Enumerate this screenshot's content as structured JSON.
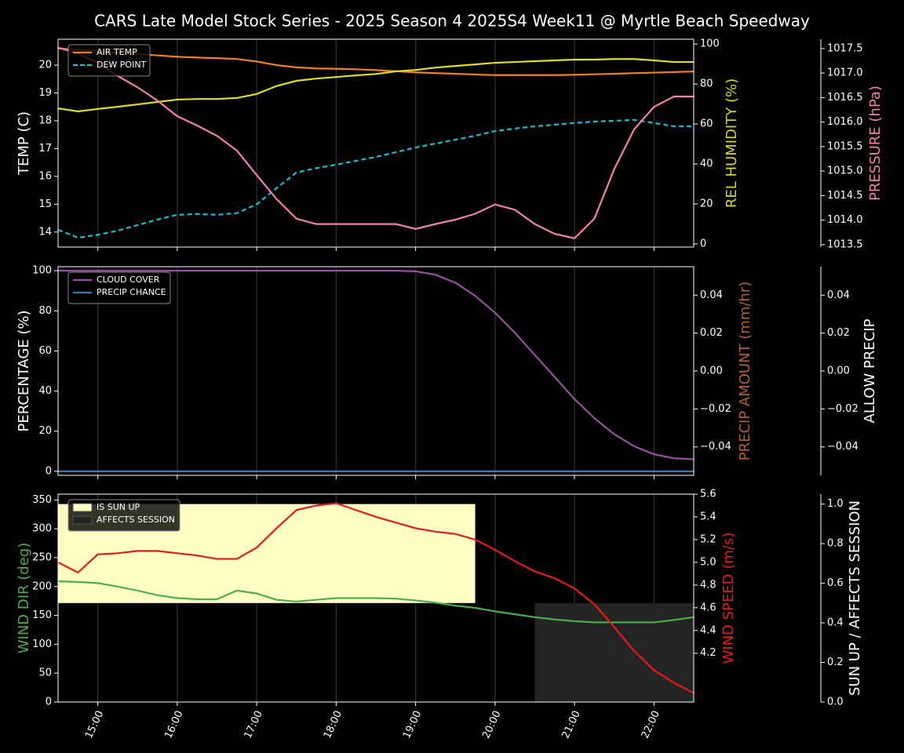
{
  "title": "CARS Late Model Stock Series - 2025 Season 4 2025S4 Week11 @ Myrtle Beach Speedway",
  "chart_data": [
    {
      "type": "line",
      "x": [
        14.5,
        14.75,
        15,
        15.25,
        15.5,
        15.75,
        16,
        16.25,
        16.5,
        16.75,
        17,
        17.25,
        17.5,
        17.75,
        18,
        18.25,
        18.5,
        18.75,
        19,
        19.25,
        19.5,
        19.75,
        20,
        20.25,
        20.5,
        20.75,
        21,
        21.25,
        21.5,
        21.75,
        22,
        22.25,
        22.5
      ],
      "xlim": [
        14.5,
        22.5
      ],
      "xticks": [
        15,
        16,
        17,
        18,
        19,
        20,
        21,
        22
      ],
      "ylabel": "TEMP (C)",
      "ylabel_color": "#ffffff",
      "ylim": [
        13.46,
        20.93
      ],
      "yticks": [
        14,
        15,
        16,
        17,
        18,
        19,
        20
      ],
      "y2label": "REL HUMIDITY (%)",
      "y2label_color": "#d8d820",
      "y2lim": [
        -1.6,
        102.4
      ],
      "y2ticks": [
        0,
        20,
        40,
        60,
        80,
        100
      ],
      "y3label": "PRESSURE (hPa)",
      "y3label_color": "#f07fb5",
      "y3lim": [
        1013.45,
        1017.69
      ],
      "y3ticks": [
        1013.5,
        {
          "value": 1014,
          "label": "1014.0"
        },
        1014.5,
        {
          "value": 1015,
          "label": "1015.0"
        },
        1015.5,
        {
          "value": 1016,
          "label": "1016.0"
        },
        1016.5,
        {
          "value": 1017,
          "label": "1017.0"
        },
        1017.5
      ],
      "series": [
        {
          "name": "AIR TEMP",
          "color": "#f07f1c",
          "axis": "y",
          "values": [
            20.6,
            20.55,
            20.5,
            20.45,
            20.4,
            20.35,
            20.3,
            20.27,
            20.25,
            20.22,
            20.13,
            20.0,
            19.92,
            19.88,
            19.87,
            19.85,
            19.82,
            19.78,
            19.74,
            19.71,
            19.69,
            19.66,
            19.64,
            19.64,
            19.64,
            19.64,
            19.65,
            19.67,
            19.69,
            19.71,
            19.73,
            19.75,
            19.77
          ]
        },
        {
          "name": "DEW POINT",
          "color": "#17becf",
          "dashed": true,
          "axis": "y",
          "values": [
            14.08,
            13.8,
            13.9,
            14.05,
            14.25,
            14.45,
            14.62,
            14.65,
            14.62,
            14.68,
            15.0,
            15.58,
            16.14,
            16.3,
            16.42,
            16.56,
            16.7,
            16.87,
            17.04,
            17.18,
            17.32,
            17.46,
            17.63,
            17.72,
            17.8,
            17.86,
            17.92,
            17.97,
            18.0,
            18.03,
            17.92,
            17.8,
            17.8
          ]
        },
        {
          "color": "#dddd22",
          "axis": "y2",
          "values": [
            67.8,
            66.3,
            67.5,
            68.6,
            69.8,
            71,
            72.2,
            72.5,
            72.5,
            73,
            75,
            79,
            81.6,
            82.7,
            83.5,
            84.3,
            85,
            86.3,
            87,
            88.2,
            89,
            89.8,
            90.6,
            91,
            91.4,
            91.8,
            92.2,
            92.2,
            92.5,
            92.5,
            91.8,
            91,
            91
          ]
        },
        {
          "color": "#f07fb5",
          "axis": "y3",
          "values": [
            1017.52,
            1017.4,
            1017.21,
            1016.94,
            1016.71,
            1016.44,
            1016.12,
            1015.93,
            1015.72,
            1015.42,
            1014.92,
            1014.43,
            1014.03,
            1013.92,
            1013.92,
            1013.92,
            1013.92,
            1013.92,
            1013.82,
            1013.92,
            1014.01,
            1014.13,
            1014.32,
            1014.21,
            1013.92,
            1013.72,
            1013.63,
            1014.03,
            1015.04,
            1015.85,
            1016.31,
            1016.52,
            1016.52
          ]
        }
      ]
    },
    {
      "type": "line",
      "x": [
        14.5,
        14.75,
        15,
        15.25,
        15.5,
        15.75,
        16,
        16.25,
        16.5,
        16.75,
        17,
        17.25,
        17.5,
        17.75,
        18,
        18.25,
        18.5,
        18.75,
        19,
        19.25,
        19.5,
        19.75,
        20,
        20.25,
        20.5,
        20.75,
        21,
        21.25,
        21.5,
        21.75,
        22,
        22.25,
        22.5
      ],
      "xlim": [
        14.5,
        22.5
      ],
      "xticks": [
        15,
        16,
        17,
        18,
        19,
        20,
        21,
        22
      ],
      "ylabel": "PERCENTAGE (%)",
      "ylabel_color": "#ffffff",
      "ylim": [
        -2,
        102
      ],
      "yticks": [
        0,
        20,
        40,
        60,
        80,
        100
      ],
      "y2label": "PRECIP AMOUNT (mm/hr)",
      "y2label_color": "#b0603a",
      "y2lim": [
        -0.055,
        0.055
      ],
      "y2ticks": [
        {
          "value": -0.04,
          "label": "−0.04"
        },
        {
          "value": -0.02,
          "label": "−0.02"
        },
        {
          "value": 0,
          "label": "0.00"
        },
        0.02,
        0.04
      ],
      "y3label": "ALLOW PRECIP",
      "y3label_color": "#ffffff",
      "y3lim": [
        -0.055,
        0.055
      ],
      "y3ticks": [
        {
          "value": -0.04,
          "label": "−0.04"
        },
        {
          "value": -0.02,
          "label": "−0.02"
        },
        {
          "value": 0,
          "label": "0.00"
        },
        0.02,
        0.04
      ],
      "series": [
        {
          "name": "CLOUD COVER",
          "color": "#984ea3",
          "axis": "y",
          "values": [
            100,
            100,
            100,
            100,
            100,
            100,
            100,
            100,
            100,
            100,
            100,
            100,
            100,
            100,
            100,
            100,
            100,
            100,
            99.7,
            98,
            94,
            87.5,
            79,
            69,
            58,
            47,
            36,
            26.5,
            18.5,
            12.5,
            8.5,
            6.5,
            6
          ]
        },
        {
          "name": "PRECIP CHANCE",
          "color": "#377eb8",
          "axis": "y",
          "values": [
            0,
            0,
            0,
            0,
            0,
            0,
            0,
            0,
            0,
            0,
            0,
            0,
            0,
            0,
            0,
            0,
            0,
            0,
            0,
            0,
            0,
            0,
            0,
            0,
            0,
            0,
            0,
            0,
            0,
            0,
            0,
            0,
            0
          ]
        }
      ]
    },
    {
      "type": "line",
      "x": [
        14.5,
        14.75,
        15,
        15.25,
        15.5,
        15.75,
        16,
        16.25,
        16.5,
        16.75,
        17,
        17.25,
        17.5,
        17.75,
        18,
        18.25,
        18.5,
        18.75,
        19,
        19.25,
        19.5,
        19.75,
        20,
        20.25,
        20.5,
        20.75,
        21,
        21.25,
        21.5,
        21.75,
        22,
        22.25,
        22.5
      ],
      "xlim": [
        14.5,
        22.5
      ],
      "xticks": [
        {
          "value": 15,
          "label": "15:00"
        },
        {
          "value": 16,
          "label": "16:00"
        },
        {
          "value": 17,
          "label": "17:00"
        },
        {
          "value": 18,
          "label": "18:00"
        },
        {
          "value": 19,
          "label": "19:00"
        },
        {
          "value": 20,
          "label": "20:00"
        },
        {
          "value": 21,
          "label": "21:00"
        },
        {
          "value": 22,
          "label": "22:00"
        }
      ],
      "ylabel": "WIND DIR (deg)",
      "ylabel_color": "#4daf4a",
      "ylim": [
        0,
        360
      ],
      "yticks": [
        0,
        50,
        100,
        150,
        200,
        250,
        300,
        350
      ],
      "y2label": "WIND SPEED (m/s)",
      "y2label_color": "#e41a1c",
      "y2lim": [
        3.77,
        5.6
      ],
      "y2ticks": [
        4.2,
        4.4,
        4.6,
        4.8,
        {
          "value": 5,
          "label": "5.0"
        },
        5.2,
        5.4,
        5.6
      ],
      "y3label": "SUN UP / AFFECTS SESSION",
      "y3label_color": "#ffffff",
      "y3lim": [
        0,
        1.05
      ],
      "y3ticks": [
        {
          "value": 0,
          "label": "0.0"
        },
        0.2,
        0.4,
        0.6,
        0.8,
        {
          "value": 1,
          "label": "1.0"
        }
      ],
      "regions": [
        {
          "name": "IS SUN UP",
          "color": "#ffffc4",
          "axis": "y3",
          "x": [
            14.5,
            19.75
          ],
          "y": [
            0.5,
            1.0
          ]
        },
        {
          "name": "AFFECTS SESSION",
          "color": "#242424",
          "axis": "y3",
          "x": [
            20.5,
            22.5
          ],
          "y": [
            0,
            0.5
          ]
        }
      ],
      "series": [
        {
          "color": "#4daf4a",
          "axis": "y",
          "values": [
            209,
            208,
            206,
            200,
            193,
            185,
            180,
            178,
            178,
            193,
            188,
            177,
            174,
            177,
            180,
            180,
            180,
            179,
            176,
            172,
            167,
            163,
            157,
            152,
            147,
            143,
            140,
            138,
            138,
            138,
            138,
            142,
            147
          ]
        },
        {
          "color": "#e41a1c",
          "axis": "y2",
          "values": [
            5.0,
            4.91,
            5.07,
            5.08,
            5.1,
            5.1,
            5.08,
            5.06,
            5.03,
            5.03,
            5.13,
            5.3,
            5.46,
            5.5,
            5.52,
            5.46,
            5.4,
            5.35,
            5.3,
            5.27,
            5.25,
            5.2,
            5.11,
            5.01,
            4.92,
            4.86,
            4.77,
            4.63,
            4.43,
            4.22,
            4.05,
            3.94,
            3.85
          ]
        }
      ]
    }
  ]
}
